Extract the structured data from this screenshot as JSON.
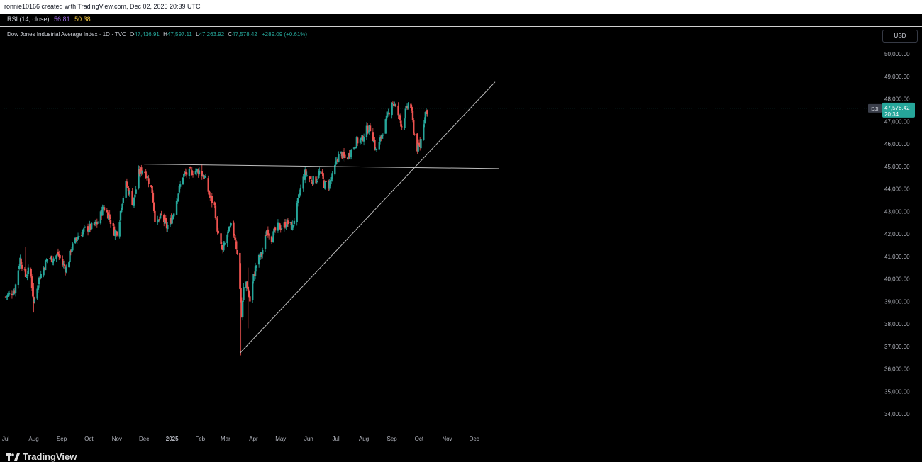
{
  "header": {
    "attribution": "ronnie10166 created with TradingView.com, Dec 02, 2025 20:39 UTC"
  },
  "rsi": {
    "label": "RSI (14, close)",
    "value1": "56.81",
    "value2": "50.38"
  },
  "legend": {
    "title": "Dow Jones Industrial Average Index · 1D · TVC",
    "o_label": "O",
    "o_value": "47,416.91",
    "h_label": "H",
    "h_value": "47,597.11",
    "l_label": "L",
    "l_value": "47,263.92",
    "c_label": "C",
    "c_value": "47,578.42",
    "change": "+289.09 (+0.61%)"
  },
  "currency_button": "USD",
  "price_tag": {
    "symbol": "DJI",
    "price": "47,578.42",
    "countdown": "20:34"
  },
  "brand": {
    "name": "TradingView"
  },
  "colors": {
    "up": "#26a69a",
    "down": "#ef5350",
    "background": "#000000",
    "trendline": "#bdbdbd",
    "label_bg": "#26a69a"
  },
  "chart_data": {
    "type": "candlestick",
    "y_ticks": [
      "50,000.00",
      "49,000.00",
      "48,000.00",
      "47,000.00",
      "46,000.00",
      "45,000.00",
      "44,000.00",
      "43,000.00",
      "42,000.00",
      "41,000.00",
      "40,000.00",
      "39,000.00",
      "38,000.00",
      "37,000.00",
      "36,000.00",
      "35,000.00",
      "34,000.00"
    ],
    "ylim": [
      33500,
      50400
    ],
    "x_ticks": [
      "Jul",
      "Aug",
      "Sep",
      "Oct",
      "Nov",
      "Dec",
      "2025",
      "Feb",
      "Mar",
      "Apr",
      "May",
      "Jun",
      "Jul",
      "Aug",
      "Sep",
      "Oct",
      "Nov",
      "Dec"
    ],
    "x_range_days": [
      0,
      545
    ],
    "x_tick_days": [
      0,
      31,
      62,
      92,
      123,
      153,
      184,
      215,
      243,
      274,
      304,
      335,
      365,
      396,
      427,
      457,
      488,
      518
    ],
    "close_path": [
      [
        0,
        39200
      ],
      [
        10,
        39500
      ],
      [
        16,
        40900
      ],
      [
        22,
        40100
      ],
      [
        27,
        40500
      ],
      [
        31,
        38900
      ],
      [
        36,
        39900
      ],
      [
        40,
        40300
      ],
      [
        46,
        40900
      ],
      [
        52,
        40900
      ],
      [
        58,
        41100
      ],
      [
        62,
        40700
      ],
      [
        68,
        40400
      ],
      [
        72,
        41300
      ],
      [
        80,
        41900
      ],
      [
        88,
        42200
      ],
      [
        95,
        42300
      ],
      [
        102,
        42500
      ],
      [
        108,
        43200
      ],
      [
        114,
        42800
      ],
      [
        120,
        42100
      ],
      [
        124,
        42100
      ],
      [
        128,
        43300
      ],
      [
        133,
        44200
      ],
      [
        137,
        43800
      ],
      [
        141,
        43300
      ],
      [
        147,
        44700
      ],
      [
        152,
        44900
      ],
      [
        156,
        44600
      ],
      [
        162,
        43900
      ],
      [
        166,
        42300
      ],
      [
        172,
        42800
      ],
      [
        178,
        42300
      ],
      [
        184,
        42700
      ],
      [
        190,
        43700
      ],
      [
        196,
        44600
      ],
      [
        202,
        44700
      ],
      [
        208,
        44800
      ],
      [
        214,
        44800
      ],
      [
        220,
        44500
      ],
      [
        226,
        43600
      ],
      [
        231,
        43200
      ],
      [
        236,
        41600
      ],
      [
        240,
        41200
      ],
      [
        244,
        41900
      ],
      [
        249,
        42300
      ],
      [
        254,
        41800
      ],
      [
        258,
        40300
      ],
      [
        261,
        38300
      ],
      [
        264,
        40200
      ],
      [
        267,
        39700
      ],
      [
        270,
        39000
      ],
      [
        274,
        40100
      ],
      [
        278,
        40800
      ],
      [
        283,
        41100
      ],
      [
        289,
        42200
      ],
      [
        294,
        41800
      ],
      [
        300,
        42300
      ],
      [
        306,
        42300
      ],
      [
        311,
        42500
      ],
      [
        317,
        42300
      ],
      [
        322,
        43200
      ],
      [
        327,
        44200
      ],
      [
        331,
        44700
      ],
      [
        337,
        44400
      ],
      [
        343,
        44400
      ],
      [
        348,
        44800
      ],
      [
        352,
        44200
      ],
      [
        357,
        44200
      ],
      [
        362,
        44600
      ],
      [
        366,
        45300
      ],
      [
        370,
        45600
      ],
      [
        376,
        45300
      ],
      [
        382,
        45700
      ],
      [
        388,
        46100
      ],
      [
        394,
        46200
      ],
      [
        398,
        46600
      ],
      [
        404,
        46700
      ],
      [
        409,
        45700
      ],
      [
        413,
        46000
      ],
      [
        417,
        46600
      ],
      [
        422,
        47200
      ],
      [
        427,
        47900
      ],
      [
        430,
        47700
      ],
      [
        434,
        47300
      ],
      [
        438,
        46800
      ],
      [
        442,
        47400
      ],
      [
        447,
        48000
      ],
      [
        451,
        46600
      ],
      [
        455,
        45800
      ],
      [
        458,
        45900
      ],
      [
        461,
        46800
      ],
      [
        464,
        47400
      ],
      [
        468,
        47580
      ]
    ],
    "extremes": [
      {
        "day": 22,
        "high": 41400,
        "low": 40100
      },
      {
        "day": 31,
        "high": 39800,
        "low": 38500
      },
      {
        "day": 153,
        "high": 45100,
        "low": 44400
      },
      {
        "day": 217,
        "high": 45100,
        "low": 44400
      },
      {
        "day": 260,
        "high": 40700,
        "low": 36600
      },
      {
        "day": 268,
        "high": 40500,
        "low": 37800
      },
      {
        "day": 447,
        "high": 48400,
        "low": 47500
      },
      {
        "day": 458,
        "high": 46300,
        "low": 45700
      }
    ],
    "last": {
      "open": 47416.91,
      "high": 47597.11,
      "low": 47263.92,
      "close": 47578.42
    },
    "trendlines": [
      {
        "from": [
          153,
          45100
        ],
        "to": [
          545,
          44900
        ]
      },
      {
        "from": [
          259,
          36700
        ],
        "to": [
          541,
          48750
        ]
      }
    ],
    "price_line": 47578.42
  }
}
